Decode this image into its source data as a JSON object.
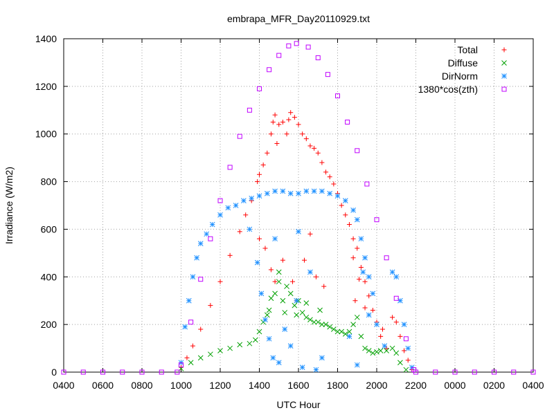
{
  "chart_data": {
    "type": "scatter",
    "title": "embrapa_MFR_Day20110929.txt",
    "xlabel": "UTC Hour",
    "ylabel": "Irradiance (W/m2)",
    "xlim": [
      4,
      28
    ],
    "ylim": [
      0,
      1400
    ],
    "x_tick_labels": [
      "0400",
      "0600",
      "0800",
      "1000",
      "1200",
      "1400",
      "1600",
      "1800",
      "2000",
      "2200",
      "0000",
      "0200",
      "0400"
    ],
    "y_tick_labels": [
      "0",
      "200",
      "400",
      "600",
      "800",
      "1000",
      "1200",
      "1400"
    ],
    "grid": true,
    "legend_position": "top-right",
    "series": [
      {
        "name": "Total",
        "marker": "+",
        "color": "#ff0000",
        "points": [
          [
            10.0,
            20
          ],
          [
            10.3,
            60
          ],
          [
            10.6,
            110
          ],
          [
            11.0,
            180
          ],
          [
            11.5,
            280
          ],
          [
            12.0,
            380
          ],
          [
            12.5,
            490
          ],
          [
            13.0,
            590
          ],
          [
            13.3,
            660
          ],
          [
            13.6,
            720
          ],
          [
            13.9,
            800
          ],
          [
            14.0,
            830
          ],
          [
            14.2,
            870
          ],
          [
            14.4,
            920
          ],
          [
            14.6,
            1000
          ],
          [
            14.7,
            1050
          ],
          [
            14.8,
            1080
          ],
          [
            14.9,
            960
          ],
          [
            15.0,
            1040
          ],
          [
            15.2,
            1050
          ],
          [
            15.4,
            1000
          ],
          [
            15.5,
            1060
          ],
          [
            15.6,
            1090
          ],
          [
            15.8,
            1070
          ],
          [
            16.0,
            1040
          ],
          [
            16.2,
            1000
          ],
          [
            16.4,
            980
          ],
          [
            16.6,
            950
          ],
          [
            16.8,
            940
          ],
          [
            17.0,
            920
          ],
          [
            17.2,
            880
          ],
          [
            17.4,
            840
          ],
          [
            17.6,
            820
          ],
          [
            17.8,
            790
          ],
          [
            18.0,
            750
          ],
          [
            18.2,
            700
          ],
          [
            18.4,
            660
          ],
          [
            18.6,
            620
          ],
          [
            18.8,
            560
          ],
          [
            19.0,
            520
          ],
          [
            19.2,
            440
          ],
          [
            19.4,
            380
          ],
          [
            19.6,
            320
          ],
          [
            19.8,
            260
          ],
          [
            20.0,
            210
          ],
          [
            20.2,
            150
          ],
          [
            20.5,
            100
          ],
          [
            20.8,
            230
          ],
          [
            21.0,
            210
          ],
          [
            21.2,
            150
          ],
          [
            21.4,
            90
          ],
          [
            21.6,
            50
          ],
          [
            21.8,
            10
          ],
          [
            14.0,
            560
          ],
          [
            14.3,
            520
          ],
          [
            14.6,
            430
          ],
          [
            14.8,
            380
          ],
          [
            15.2,
            470
          ],
          [
            15.7,
            380
          ],
          [
            15.9,
            300
          ],
          [
            16.3,
            470
          ],
          [
            16.6,
            580
          ],
          [
            16.9,
            400
          ],
          [
            17.3,
            360
          ],
          [
            18.8,
            480
          ],
          [
            19.1,
            390
          ],
          [
            19.4,
            270
          ],
          [
            18.9,
            300
          ],
          [
            20.3,
            180
          ]
        ]
      },
      {
        "name": "Diffuse",
        "marker": "x",
        "color": "#00a000",
        "points": [
          [
            10.0,
            15
          ],
          [
            10.5,
            40
          ],
          [
            11.0,
            60
          ],
          [
            11.5,
            75
          ],
          [
            12.0,
            90
          ],
          [
            12.5,
            100
          ],
          [
            13.0,
            115
          ],
          [
            13.5,
            120
          ],
          [
            13.8,
            135
          ],
          [
            14.0,
            170
          ],
          [
            14.2,
            210
          ],
          [
            14.4,
            240
          ],
          [
            14.6,
            310
          ],
          [
            14.8,
            330
          ],
          [
            15.0,
            380
          ],
          [
            15.2,
            300
          ],
          [
            15.4,
            360
          ],
          [
            15.6,
            330
          ],
          [
            15.8,
            280
          ],
          [
            16.0,
            300
          ],
          [
            16.2,
            250
          ],
          [
            16.4,
            230
          ],
          [
            16.6,
            220
          ],
          [
            16.8,
            210
          ],
          [
            17.0,
            210
          ],
          [
            17.2,
            200
          ],
          [
            17.4,
            200
          ],
          [
            17.6,
            190
          ],
          [
            17.8,
            180
          ],
          [
            18.0,
            170
          ],
          [
            18.2,
            170
          ],
          [
            18.4,
            160
          ],
          [
            18.6,
            170
          ],
          [
            18.8,
            200
          ],
          [
            19.0,
            230
          ],
          [
            19.2,
            150
          ],
          [
            19.4,
            100
          ],
          [
            19.6,
            90
          ],
          [
            19.8,
            80
          ],
          [
            20.0,
            85
          ],
          [
            20.2,
            90
          ],
          [
            20.5,
            90
          ],
          [
            20.8,
            100
          ],
          [
            21.0,
            80
          ],
          [
            21.2,
            40
          ],
          [
            21.5,
            10
          ],
          [
            14.5,
            260
          ],
          [
            15.0,
            420
          ],
          [
            15.3,
            250
          ],
          [
            15.9,
            240
          ],
          [
            16.4,
            290
          ],
          [
            17.1,
            260
          ]
        ]
      },
      {
        "name": "DirNorm",
        "marker": "*",
        "color": "#1e90ff",
        "points": [
          [
            10.0,
            40
          ],
          [
            10.2,
            190
          ],
          [
            10.4,
            300
          ],
          [
            10.6,
            400
          ],
          [
            10.8,
            480
          ],
          [
            11.0,
            540
          ],
          [
            11.3,
            580
          ],
          [
            11.6,
            620
          ],
          [
            12.0,
            660
          ],
          [
            12.4,
            690
          ],
          [
            12.8,
            700
          ],
          [
            13.2,
            720
          ],
          [
            13.6,
            730
          ],
          [
            14.0,
            740
          ],
          [
            14.4,
            750
          ],
          [
            14.8,
            760
          ],
          [
            15.2,
            760
          ],
          [
            15.6,
            750
          ],
          [
            16.0,
            750
          ],
          [
            16.4,
            760
          ],
          [
            16.8,
            760
          ],
          [
            17.2,
            760
          ],
          [
            17.6,
            750
          ],
          [
            18.0,
            740
          ],
          [
            18.4,
            720
          ],
          [
            18.8,
            680
          ],
          [
            19.0,
            640
          ],
          [
            19.2,
            560
          ],
          [
            19.4,
            480
          ],
          [
            19.6,
            400
          ],
          [
            19.8,
            330
          ],
          [
            20.0,
            200
          ],
          [
            20.4,
            110
          ],
          [
            20.8,
            420
          ],
          [
            21.0,
            400
          ],
          [
            21.2,
            300
          ],
          [
            21.4,
            200
          ],
          [
            21.6,
            100
          ],
          [
            21.8,
            20
          ],
          [
            13.9,
            460
          ],
          [
            14.1,
            330
          ],
          [
            14.3,
            220
          ],
          [
            14.5,
            140
          ],
          [
            14.7,
            60
          ],
          [
            15.0,
            40
          ],
          [
            15.3,
            180
          ],
          [
            15.6,
            110
          ],
          [
            15.9,
            300
          ],
          [
            16.2,
            20
          ],
          [
            16.6,
            420
          ],
          [
            16.9,
            10
          ],
          [
            17.2,
            60
          ],
          [
            18.6,
            150
          ],
          [
            19.0,
            30
          ],
          [
            19.3,
            420
          ],
          [
            19.6,
            240
          ],
          [
            13.5,
            600
          ],
          [
            14.8,
            560
          ],
          [
            16.0,
            590
          ]
        ]
      },
      {
        "name": "1380*cos(zth)",
        "marker": "square",
        "color": "#c000ff",
        "points": [
          [
            4.0,
            0
          ],
          [
            5.0,
            0
          ],
          [
            6.0,
            0
          ],
          [
            7.0,
            0
          ],
          [
            8.0,
            0
          ],
          [
            9.0,
            0
          ],
          [
            9.8,
            0
          ],
          [
            10.0,
            30
          ],
          [
            10.5,
            210
          ],
          [
            11.0,
            390
          ],
          [
            11.5,
            560
          ],
          [
            12.0,
            720
          ],
          [
            12.5,
            860
          ],
          [
            13.0,
            990
          ],
          [
            13.5,
            1100
          ],
          [
            14.0,
            1190
          ],
          [
            14.5,
            1270
          ],
          [
            15.0,
            1330
          ],
          [
            15.5,
            1370
          ],
          [
            15.9,
            1380
          ],
          [
            16.5,
            1365
          ],
          [
            17.0,
            1320
          ],
          [
            17.5,
            1250
          ],
          [
            18.0,
            1160
          ],
          [
            18.5,
            1050
          ],
          [
            19.0,
            930
          ],
          [
            19.5,
            790
          ],
          [
            20.0,
            640
          ],
          [
            20.5,
            480
          ],
          [
            21.0,
            310
          ],
          [
            21.5,
            140
          ],
          [
            21.9,
            10
          ],
          [
            22.0,
            0
          ],
          [
            23.0,
            0
          ],
          [
            24.0,
            0
          ],
          [
            25.0,
            0
          ],
          [
            26.0,
            0
          ],
          [
            27.0,
            0
          ],
          [
            28.0,
            0
          ]
        ]
      }
    ]
  }
}
